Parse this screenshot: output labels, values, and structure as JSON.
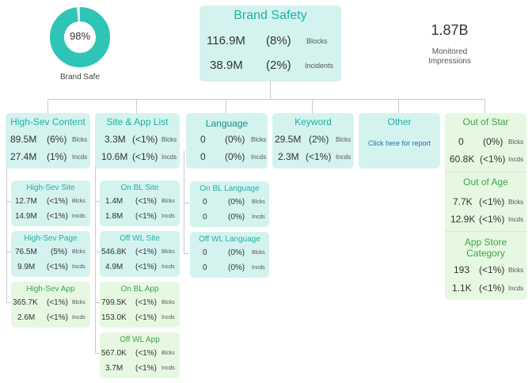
{
  "colors": {
    "teal_bg": "#d4f3ef",
    "green_bg": "#e6f8e1",
    "teal_title": "#1fb1a5",
    "green_title": "#3fa34d",
    "donut_fill": "#2ec4b6",
    "connector": "#c5ccd2"
  },
  "brand_safe": {
    "percent_text": "98%",
    "label": "Brand Safe",
    "fraction": 0.98
  },
  "brand_safety": {
    "title": "Brand Safety",
    "blocks": {
      "value": "116.9M",
      "pct": "(8%)",
      "label": "Blocks"
    },
    "incidents": {
      "value": "38.9M",
      "pct": "(2%)",
      "label": "Incidents"
    }
  },
  "monitored": {
    "value": "1.87B",
    "label_line1": "Monitored",
    "label_line2": "Impressions"
  },
  "categories": {
    "high_sev_content": {
      "title": "High-Sev Content",
      "r1": {
        "v": "89.5M",
        "p": "(6%)",
        "l": "Blcks"
      },
      "r2": {
        "v": "27.4M",
        "p": "(1%)",
        "l": "Incds"
      }
    },
    "site_app_list": {
      "title": "Site & App List",
      "r1": {
        "v": "3.3M",
        "p": "(<1%)",
        "l": "Blcks"
      },
      "r2": {
        "v": "10.6M",
        "p": "(<1%)",
        "l": "Incds"
      }
    },
    "language": {
      "title": "Language",
      "r1": {
        "v": "0",
        "p": "(0%)",
        "l": "Blcks"
      },
      "r2": {
        "v": "0",
        "p": "(0%)",
        "l": "Incds"
      }
    },
    "keyword": {
      "title": "Keyword",
      "r1": {
        "v": "29.5M",
        "p": "(2%)",
        "l": "Blcks"
      },
      "r2": {
        "v": "2.3M",
        "p": "(<1%)",
        "l": "Incds"
      }
    },
    "other": {
      "title": "Other",
      "link": "Click here for report"
    },
    "out_of_star": {
      "title": "Out of Star",
      "r1": {
        "v": "0",
        "p": "(0%)",
        "l": "Blcks"
      },
      "r2": {
        "v": "60.8K",
        "p": "(<1%)",
        "l": "Incds"
      }
    },
    "out_of_age": {
      "title": "Out of Age",
      "r1": {
        "v": "7.7K",
        "p": "(<1%)",
        "l": "Blcks"
      },
      "r2": {
        "v": "12.9K",
        "p": "(<1%)",
        "l": "Incds"
      }
    },
    "app_store_category": {
      "title_line1": "App Store",
      "title_line2": "Category",
      "r1": {
        "v": "193",
        "p": "(<1%)",
        "l": "Blcks"
      },
      "r2": {
        "v": "1.1K",
        "p": "(<1%)",
        "l": "Incds"
      }
    }
  },
  "subs": {
    "high_sev_site": {
      "title": "High-Sev Site",
      "r1": {
        "v": "12.7M",
        "p": "(<1%)",
        "l": "Blcks"
      },
      "r2": {
        "v": "14.9M",
        "p": "(<1%)",
        "l": "Incds"
      }
    },
    "high_sev_page": {
      "title": "High-Sev Page",
      "r1": {
        "v": "76.5M",
        "p": "(5%)",
        "l": "Blcks"
      },
      "r2": {
        "v": "9.9M",
        "p": "(<1%)",
        "l": "Incds"
      }
    },
    "high_sev_app": {
      "title": "High-Sev App",
      "r1": {
        "v": "365.7K",
        "p": "(<1%)",
        "l": "Blcks"
      },
      "r2": {
        "v": "2.6M",
        "p": "(<1%)",
        "l": "Incds"
      }
    },
    "on_bl_site": {
      "title": "On BL Site",
      "r1": {
        "v": "1.4M",
        "p": "(<1%)",
        "l": "Blcks"
      },
      "r2": {
        "v": "1.8M",
        "p": "(<1%)",
        "l": "Incds"
      }
    },
    "off_wl_site": {
      "title": "Off WL Site",
      "r1": {
        "v": "546.8K",
        "p": "(<1%)",
        "l": "Blcks"
      },
      "r2": {
        "v": "4.9M",
        "p": "(<1%)",
        "l": "Incds"
      }
    },
    "on_bl_app": {
      "title": "On BL App",
      "r1": {
        "v": "799.5K",
        "p": "(<1%)",
        "l": "Blcks"
      },
      "r2": {
        "v": "153.0K",
        "p": "(<1%)",
        "l": "Incds"
      }
    },
    "off_wl_app": {
      "title": "Off WL App",
      "r1": {
        "v": "567.0K",
        "p": "(<1%)",
        "l": "Blcks"
      },
      "r2": {
        "v": "3.7M",
        "p": "(<1%)",
        "l": "Incds"
      }
    },
    "on_bl_language": {
      "title": "On BL Language",
      "r1": {
        "v": "0",
        "p": "(0%)",
        "l": "Blcks"
      },
      "r2": {
        "v": "0",
        "p": "(0%)",
        "l": "Incds"
      }
    },
    "off_wl_language": {
      "title": "Off WL Language",
      "r1": {
        "v": "0",
        "p": "(0%)",
        "l": "Blcks"
      },
      "r2": {
        "v": "0",
        "p": "(0%)",
        "l": "Incds"
      }
    }
  }
}
